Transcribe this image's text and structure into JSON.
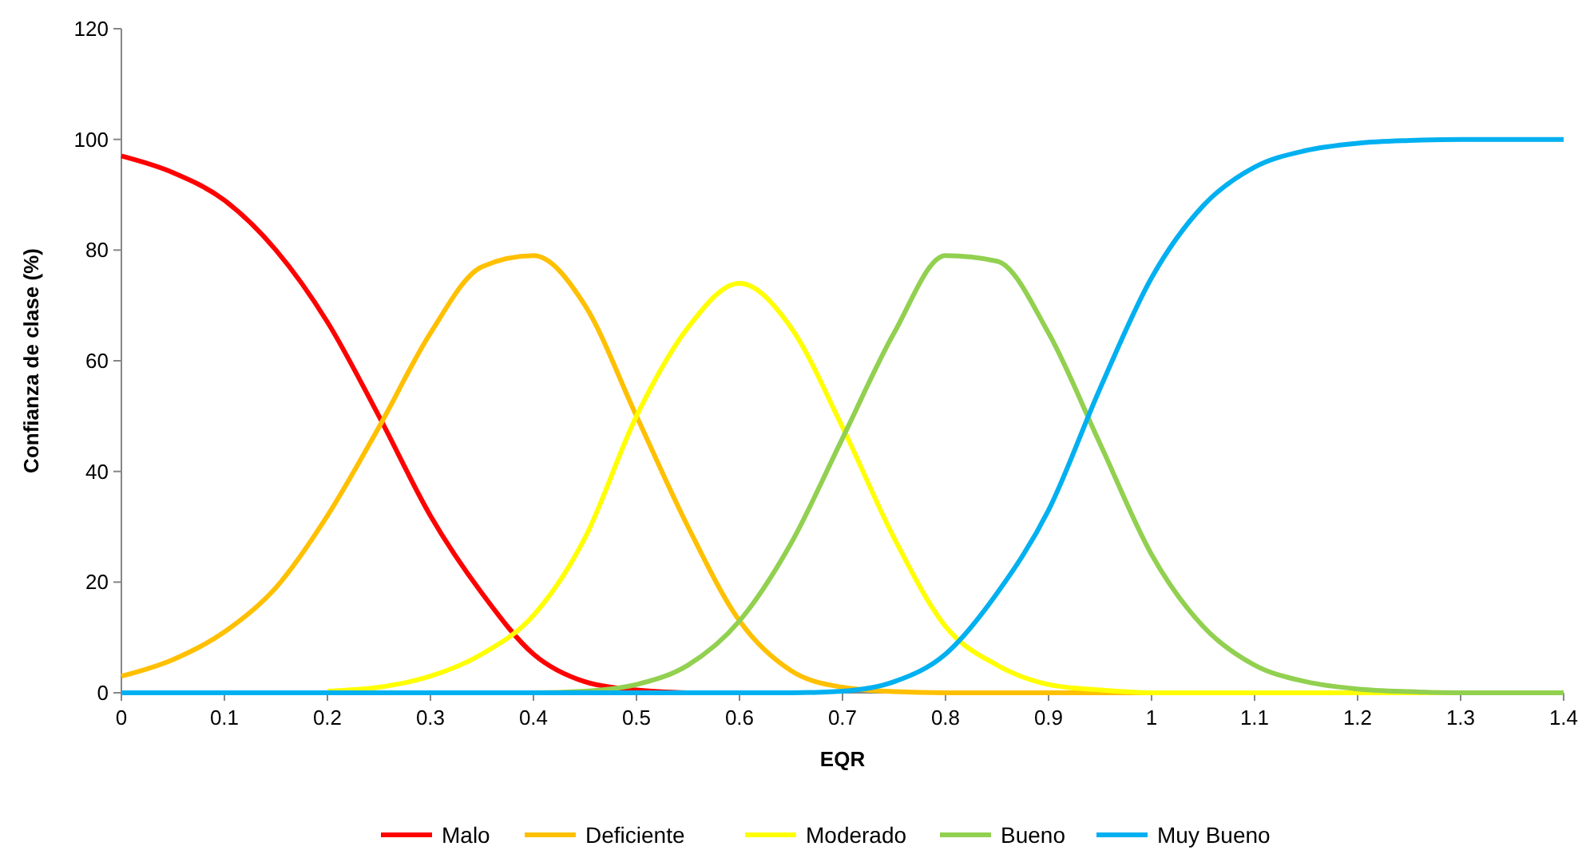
{
  "chart_data": {
    "type": "line",
    "xlabel": "EQR",
    "ylabel": "Confianza de clase (%)",
    "x": [
      0,
      0.05,
      0.1,
      0.15,
      0.2,
      0.25,
      0.3,
      0.35,
      0.4,
      0.45,
      0.5,
      0.55,
      0.6,
      0.65,
      0.7,
      0.75,
      0.8,
      0.85,
      0.9,
      0.95,
      1,
      1.05,
      1.1,
      1.15,
      1.2,
      1.25,
      1.3,
      1.35,
      1.4
    ],
    "xlim": [
      0,
      1.4
    ],
    "xticks": [
      0,
      0.1,
      0.2,
      0.3,
      0.4,
      0.5,
      0.6,
      0.7,
      0.8,
      0.9,
      1,
      1.1,
      1.2,
      1.3,
      1.4
    ],
    "ylim": [
      0,
      120
    ],
    "yticks": [
      0,
      20,
      40,
      60,
      80,
      100,
      120
    ],
    "grid": false,
    "legend": "bottom",
    "marker": "none",
    "line_style": "solid",
    "series": [
      {
        "name": "Malo",
        "color": "#ff0000",
        "values": [
          97,
          94,
          89,
          80,
          67,
          50,
          32,
          18,
          7,
          2,
          0.5,
          0,
          null,
          null,
          null,
          null,
          null,
          null,
          null,
          null,
          null,
          null,
          null,
          null,
          null,
          null,
          null,
          null,
          null
        ]
      },
      {
        "name": "Deficiente",
        "color": "#ffc000",
        "values": [
          3,
          6,
          11,
          19,
          32,
          48,
          65,
          77,
          79,
          70,
          50,
          30,
          13,
          4,
          1,
          0.2,
          0,
          0,
          0,
          0,
          0,
          0,
          null,
          null,
          null,
          null,
          null,
          null,
          null
        ]
      },
      {
        "name": "Moderado",
        "color": "#ffff00",
        "values": [
          null,
          null,
          null,
          null,
          0.3,
          1,
          3,
          7,
          14,
          28,
          50,
          66,
          74,
          66,
          48,
          28,
          12,
          5,
          1.5,
          0.5,
          0,
          0,
          0,
          0,
          0,
          0,
          0,
          null,
          null
        ]
      },
      {
        "name": "Bueno",
        "color": "#92d050",
        "values": [
          null,
          null,
          null,
          null,
          null,
          null,
          null,
          0,
          0,
          0.3,
          1.5,
          5,
          13,
          27,
          46,
          65,
          79,
          78,
          65,
          45,
          25,
          12,
          5,
          2,
          0.7,
          0.2,
          0,
          0,
          0
        ]
      },
      {
        "name": "Muy Bueno",
        "color": "#00b0f0",
        "values": [
          0,
          0,
          0,
          0,
          0,
          0,
          0,
          0,
          0,
          0,
          0,
          0,
          0,
          0,
          0.3,
          2,
          7,
          18,
          33,
          55,
          75,
          88,
          95,
          98,
          99.3,
          99.8,
          100,
          100,
          100
        ]
      }
    ]
  }
}
